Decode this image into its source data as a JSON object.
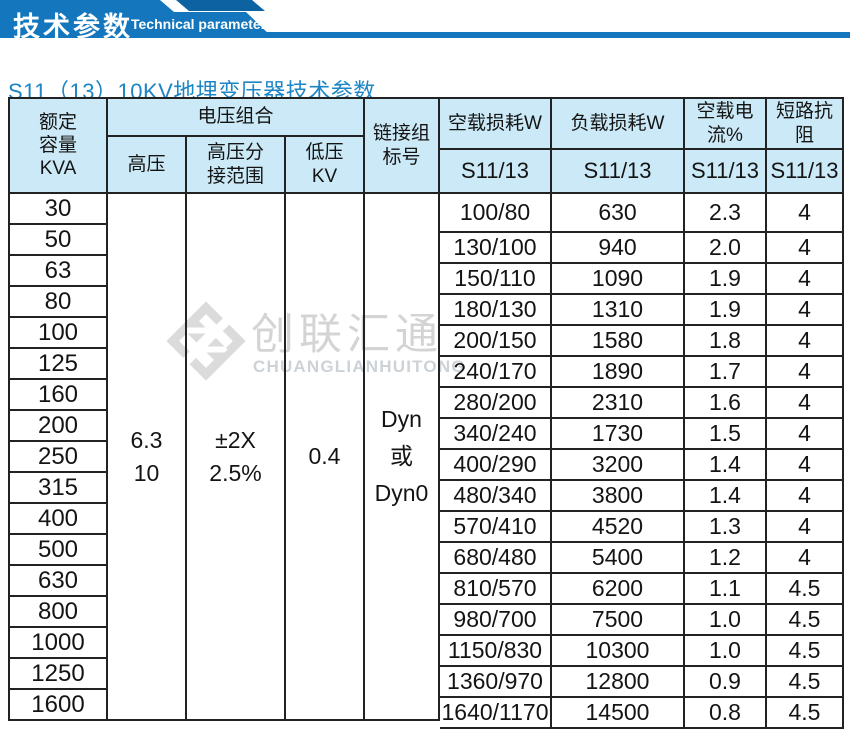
{
  "banner": {
    "title_cn": "技术参数",
    "title_en": "Technical parameter"
  },
  "page_title": "S11（13）10KV地埋变压器技术参数",
  "watermark": {
    "cn": "创联汇通",
    "en": "CHUANGLIANHUITONG"
  },
  "colors": {
    "banner_blue": "#1477bd",
    "banner_dark_blue": "#0d63a2",
    "title_blue": "#1c85c6",
    "header_cell_bg": "#cbe9f6",
    "table_border": "#222222",
    "watermark_gray": "#d4d4d4"
  },
  "table": {
    "header": {
      "capacity": "额定\n容量\nKVA",
      "voltage_group": "电压组合",
      "hv": "高压",
      "hv_tap": "高压分\n接范围",
      "lv": "低压\nKV",
      "vector_group": "链接组\n标号",
      "no_load_loss": "空载损耗W",
      "load_loss": "负载损耗W",
      "no_load_current": "空载电流%",
      "impedance": "短路抗阻",
      "model": "S11/13"
    },
    "merged": {
      "hv": "6.3\n10",
      "hv_tap": "±2X\n2.5%",
      "lv": "0.4",
      "vector_group": "Dyn\n或\nDyn0"
    },
    "rows": [
      {
        "kva": "30",
        "no_load_loss": "100/80",
        "load_loss": "630",
        "no_load_current": "2.3",
        "impedance": "4"
      },
      {
        "kva": "50",
        "no_load_loss": "130/100",
        "load_loss": "940",
        "no_load_current": "2.0",
        "impedance": "4"
      },
      {
        "kva": "63",
        "no_load_loss": "150/110",
        "load_loss": "1090",
        "no_load_current": "1.9",
        "impedance": "4"
      },
      {
        "kva": "80",
        "no_load_loss": "180/130",
        "load_loss": "1310",
        "no_load_current": "1.9",
        "impedance": "4"
      },
      {
        "kva": "100",
        "no_load_loss": "200/150",
        "load_loss": "1580",
        "no_load_current": "1.8",
        "impedance": "4"
      },
      {
        "kva": "125",
        "no_load_loss": "240/170",
        "load_loss": "1890",
        "no_load_current": "1.7",
        "impedance": "4"
      },
      {
        "kva": "160",
        "no_load_loss": "280/200",
        "load_loss": "2310",
        "no_load_current": "1.6",
        "impedance": "4"
      },
      {
        "kva": "200",
        "no_load_loss": "340/240",
        "load_loss": "1730",
        "no_load_current": "1.5",
        "impedance": "4"
      },
      {
        "kva": "250",
        "no_load_loss": "400/290",
        "load_loss": "3200",
        "no_load_current": "1.4",
        "impedance": "4"
      },
      {
        "kva": "315",
        "no_load_loss": "480/340",
        "load_loss": "3800",
        "no_load_current": "1.4",
        "impedance": "4"
      },
      {
        "kva": "400",
        "no_load_loss": "570/410",
        "load_loss": "4520",
        "no_load_current": "1.3",
        "impedance": "4"
      },
      {
        "kva": "500",
        "no_load_loss": "680/480",
        "load_loss": "5400",
        "no_load_current": "1.2",
        "impedance": "4"
      },
      {
        "kva": "630",
        "no_load_loss": "810/570",
        "load_loss": "6200",
        "no_load_current": "1.1",
        "impedance": "4.5"
      },
      {
        "kva": "800",
        "no_load_loss": "980/700",
        "load_loss": "7500",
        "no_load_current": "1.0",
        "impedance": "4.5"
      },
      {
        "kva": "1000",
        "no_load_loss": "1150/830",
        "load_loss": "10300",
        "no_load_current": "1.0",
        "impedance": "4.5"
      },
      {
        "kva": "1250",
        "no_load_loss": "1360/970",
        "load_loss": "12800",
        "no_load_current": "0.9",
        "impedance": "4.5"
      },
      {
        "kva": "1600",
        "no_load_loss": "1640/1170",
        "load_loss": "14500",
        "no_load_current": "0.8",
        "impedance": "4.5"
      }
    ]
  }
}
